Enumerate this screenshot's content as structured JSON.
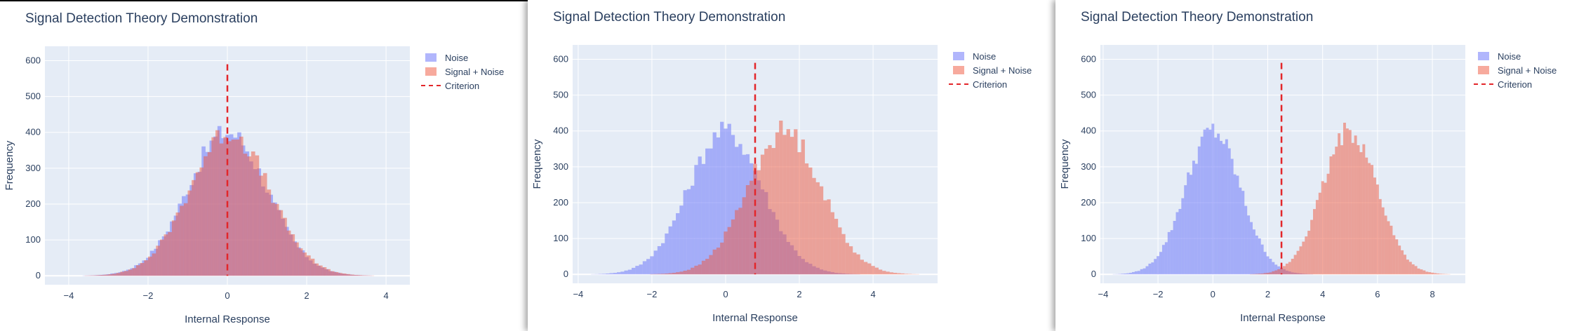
{
  "chart_data": [
    {
      "type": "histogram",
      "title": "Signal Detection Theory Demonstration",
      "xlabel": "Internal Response",
      "ylabel": "Frequency",
      "xlim": [
        -4.6,
        4.6
      ],
      "ylim": [
        -25,
        640
      ],
      "xticks": [
        -4,
        -2,
        0,
        2,
        4
      ],
      "yticks": [
        0,
        100,
        200,
        300,
        400,
        500,
        600
      ],
      "bin_width": 0.1,
      "criterion": 0,
      "criterion_line_top": 590,
      "series": [
        {
          "name": "Noise",
          "color": "#636efa",
          "opacity": 0.5,
          "mean": 0,
          "sd": 1,
          "peak": 400
        },
        {
          "name": "Signal + Noise",
          "color": "#ef553b",
          "opacity": 0.5,
          "mean": 0.05,
          "sd": 1,
          "peak": 400
        }
      ],
      "legend": {
        "placement": "right",
        "criterion_label": "Criterion"
      }
    },
    {
      "type": "histogram",
      "title": "Signal Detection Theory Demonstration",
      "xlabel": "Internal Response",
      "ylabel": "Frequency",
      "xlim": [
        -4.15,
        5.75
      ],
      "ylim": [
        -25,
        640
      ],
      "xticks": [
        -4,
        -2,
        0,
        2,
        4
      ],
      "yticks": [
        0,
        100,
        200,
        300,
        400,
        500,
        600
      ],
      "bin_width": 0.1,
      "criterion": 0.8,
      "criterion_line_top": 590,
      "series": [
        {
          "name": "Noise",
          "color": "#636efa",
          "opacity": 0.5,
          "mean": 0,
          "sd": 1,
          "peak": 400
        },
        {
          "name": "Signal + Noise",
          "color": "#ef553b",
          "opacity": 0.5,
          "mean": 1.6,
          "sd": 1,
          "peak": 400
        }
      ],
      "legend": {
        "placement": "right",
        "criterion_label": "Criterion"
      }
    },
    {
      "type": "histogram",
      "title": "Signal Detection Theory Demonstration",
      "xlabel": "Internal Response",
      "ylabel": "Frequency",
      "xlim": [
        -4.1,
        9.2
      ],
      "ylim": [
        -25,
        640
      ],
      "xticks": [
        -4,
        -2,
        0,
        2,
        4,
        6,
        8
      ],
      "yticks": [
        0,
        100,
        200,
        300,
        400,
        500,
        600
      ],
      "bin_width": 0.1,
      "criterion": 2.5,
      "criterion_line_top": 590,
      "series": [
        {
          "name": "Noise",
          "color": "#636efa",
          "opacity": 0.5,
          "mean": 0,
          "sd": 1,
          "peak": 400
        },
        {
          "name": "Signal + Noise",
          "color": "#ef553b",
          "opacity": 0.5,
          "mean": 5,
          "sd": 1,
          "peak": 400
        }
      ],
      "legend": {
        "placement": "right",
        "criterion_label": "Criterion"
      }
    }
  ]
}
